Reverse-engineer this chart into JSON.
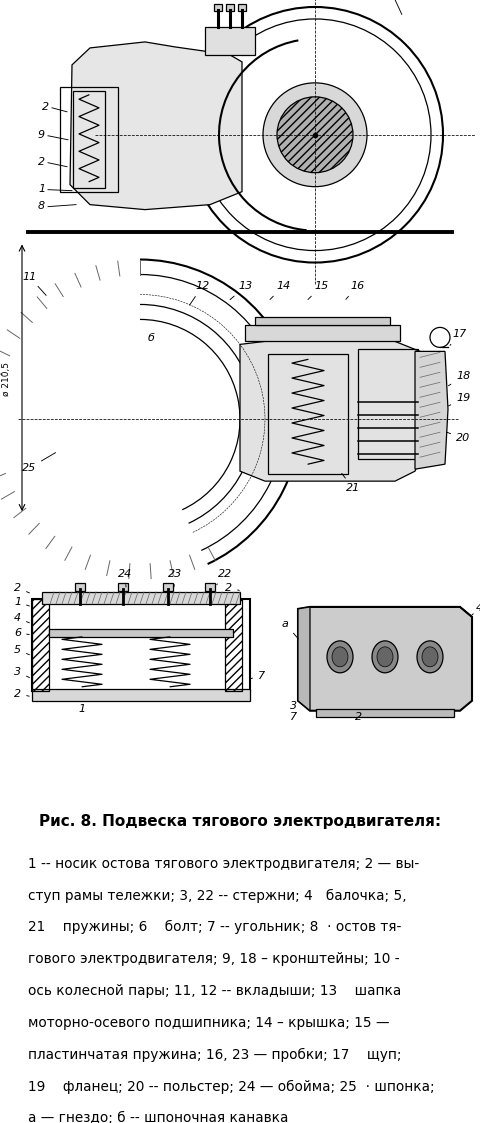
{
  "title": "Рис. 8. Подвеска тягового электродвигателя:",
  "caption_lines": [
    "1 -- носик остова тягового электродвигателя; 2 — вы-",
    "ступ рамы тележки; 3, 22 -- стержни; 4   балочка; 5,",
    "21    пружины; 6    болт; 7 -- угольник; 8  · остов тя-",
    "гового электродвигателя; 9, 18 – кронштейны; 10 -",
    "ось колесной пары; 11, 12 -- вкладыши; 13    шапка",
    "моторно-осевого подшипника; 14 – крышка; 15 —",
    "пластинчатая пружина; 16, 23 — пробки; 17    щуп;",
    "19    фланец; 20 -- польстер; 24 — обойма; 25  · шпонка;",
    "а — гнездо; б -- шпоночная канавка"
  ],
  "bg_color": "#ffffff",
  "text_color": "#000000",
  "title_fontsize": 11.0,
  "caption_fontsize": 9.8,
  "fig_width": 4.8,
  "fig_height": 11.23
}
